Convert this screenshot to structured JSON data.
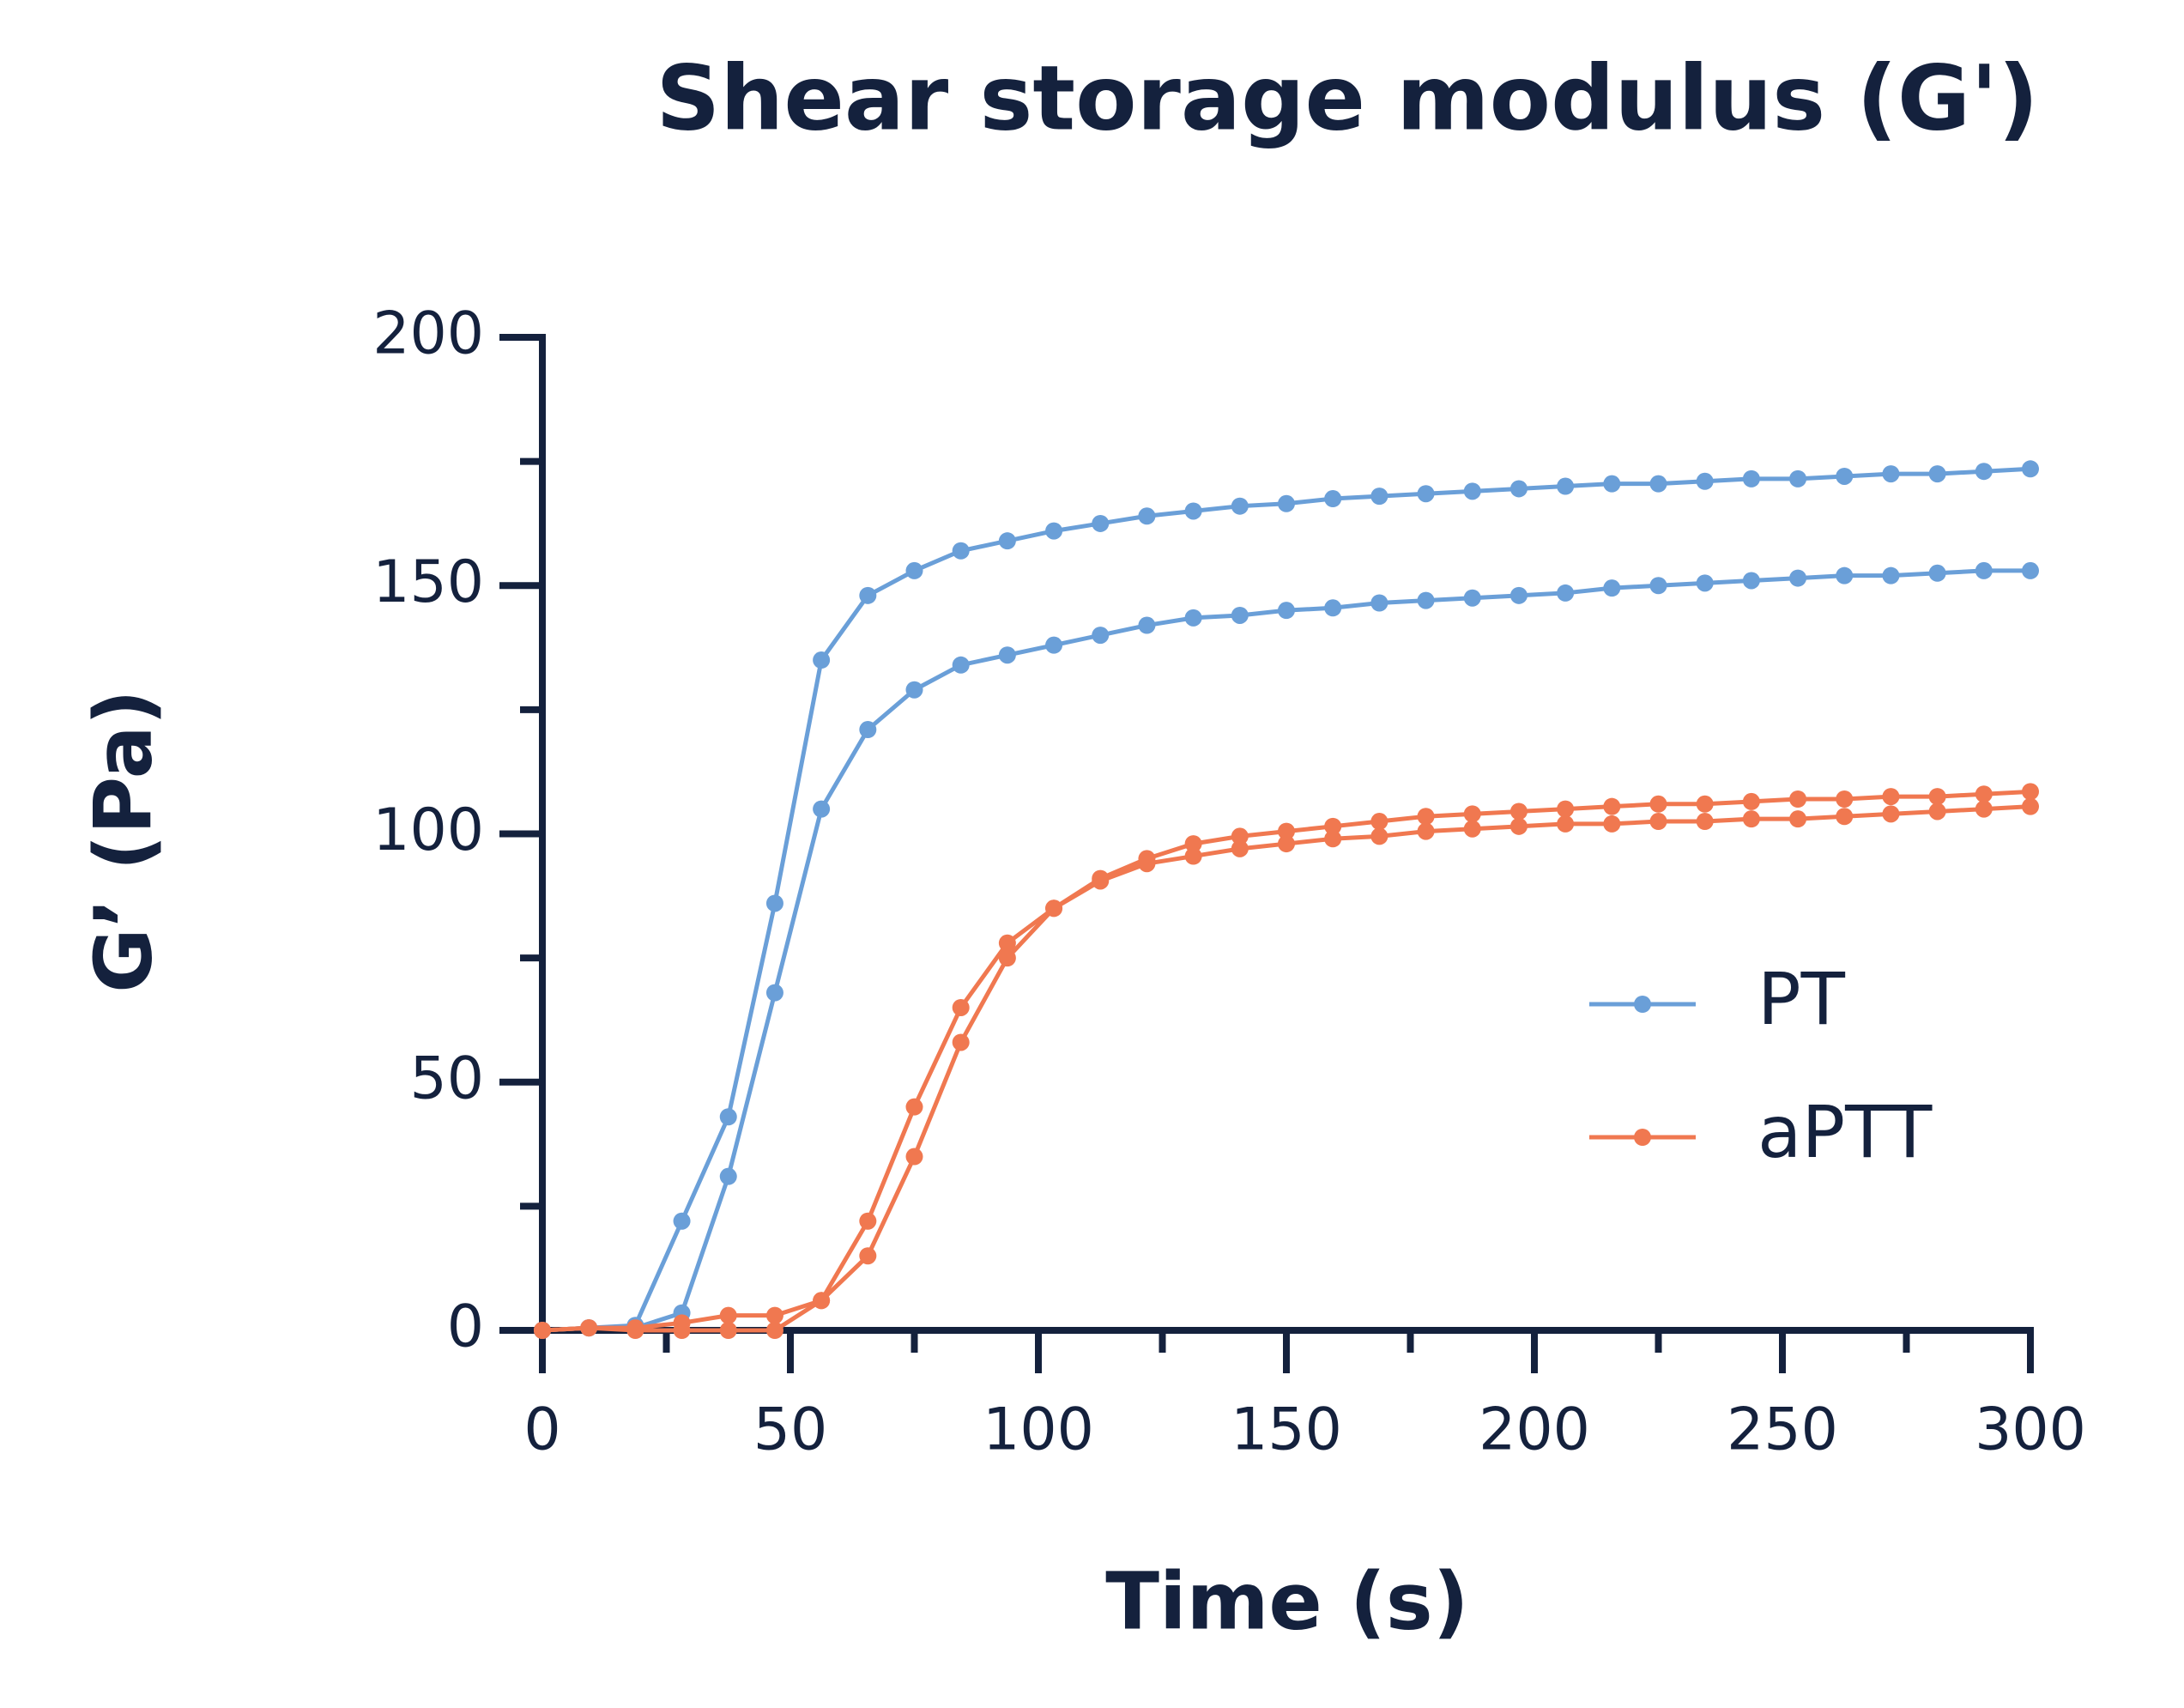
{
  "chart_data": {
    "type": "line",
    "title": "Shear storage modulus (G')",
    "x_label": "Time (s)",
    "y_label": "G’ (Pa)",
    "x": [
      0,
      9.375,
      18.75,
      28.125,
      37.5,
      46.875,
      56.25,
      65.625,
      75,
      84.375,
      93.75,
      103.125,
      112.5,
      121.875,
      131.25,
      140.625,
      150,
      159.375,
      168.75,
      178.125,
      187.5,
      196.875,
      206.25,
      215.625,
      225,
      234.375,
      243.75,
      253.125,
      262.5,
      271.875,
      281.25,
      290.625,
      300
    ],
    "series": [
      {
        "name": "PT",
        "color": "#6a9fd8",
        "values": [
          [
            0,
            0.5,
            1,
            22,
            43,
            86,
            135,
            148,
            153,
            157,
            159,
            161,
            162.5,
            164,
            165,
            166,
            166.5,
            167.5,
            168,
            168.5,
            169,
            169.5,
            170,
            170.5,
            170.5,
            171,
            171.5,
            171.5,
            172,
            172.5,
            172.5,
            173,
            173.5
          ],
          [
            0,
            0.5,
            0.5,
            3.5,
            31,
            68,
            105,
            121,
            129,
            134,
            136,
            138,
            140,
            142,
            143.5,
            144,
            145,
            145.5,
            146.5,
            147,
            147.5,
            148,
            148.5,
            149.5,
            150,
            150.5,
            151,
            151.5,
            152,
            152,
            152.5,
            153,
            153
          ]
        ]
      },
      {
        "name": "aPTT",
        "color": "#f07850",
        "values": [
          [
            0,
            0.5,
            0.5,
            1.5,
            3,
            3,
            6,
            22,
            45,
            65,
            78,
            85,
            91,
            95,
            98,
            99.5,
            100.5,
            101.5,
            102.5,
            103.5,
            104,
            104.5,
            105,
            105.5,
            106,
            106,
            106.5,
            107,
            107,
            107.5,
            107.5,
            108,
            108.5
          ],
          [
            0,
            0.5,
            0,
            0,
            0,
            0,
            6,
            15,
            35,
            58,
            75,
            85,
            90.5,
            94,
            95.5,
            97,
            98,
            99,
            99.5,
            100.5,
            101,
            101.5,
            102,
            102,
            102.5,
            102.5,
            103,
            103,
            103.5,
            104,
            104.5,
            105,
            105.5
          ]
        ]
      }
    ],
    "xlim": [
      0,
      300
    ],
    "xticks": [
      0,
      50,
      100,
      150,
      200,
      250,
      300
    ],
    "xminorticks": [
      25,
      75,
      125,
      175,
      225,
      275
    ],
    "ylim": [
      0,
      200
    ],
    "yticks": [
      0,
      50,
      100,
      150,
      200
    ],
    "yminorticks": [
      25,
      75,
      125,
      175
    ],
    "grid": false,
    "legend": "right"
  }
}
